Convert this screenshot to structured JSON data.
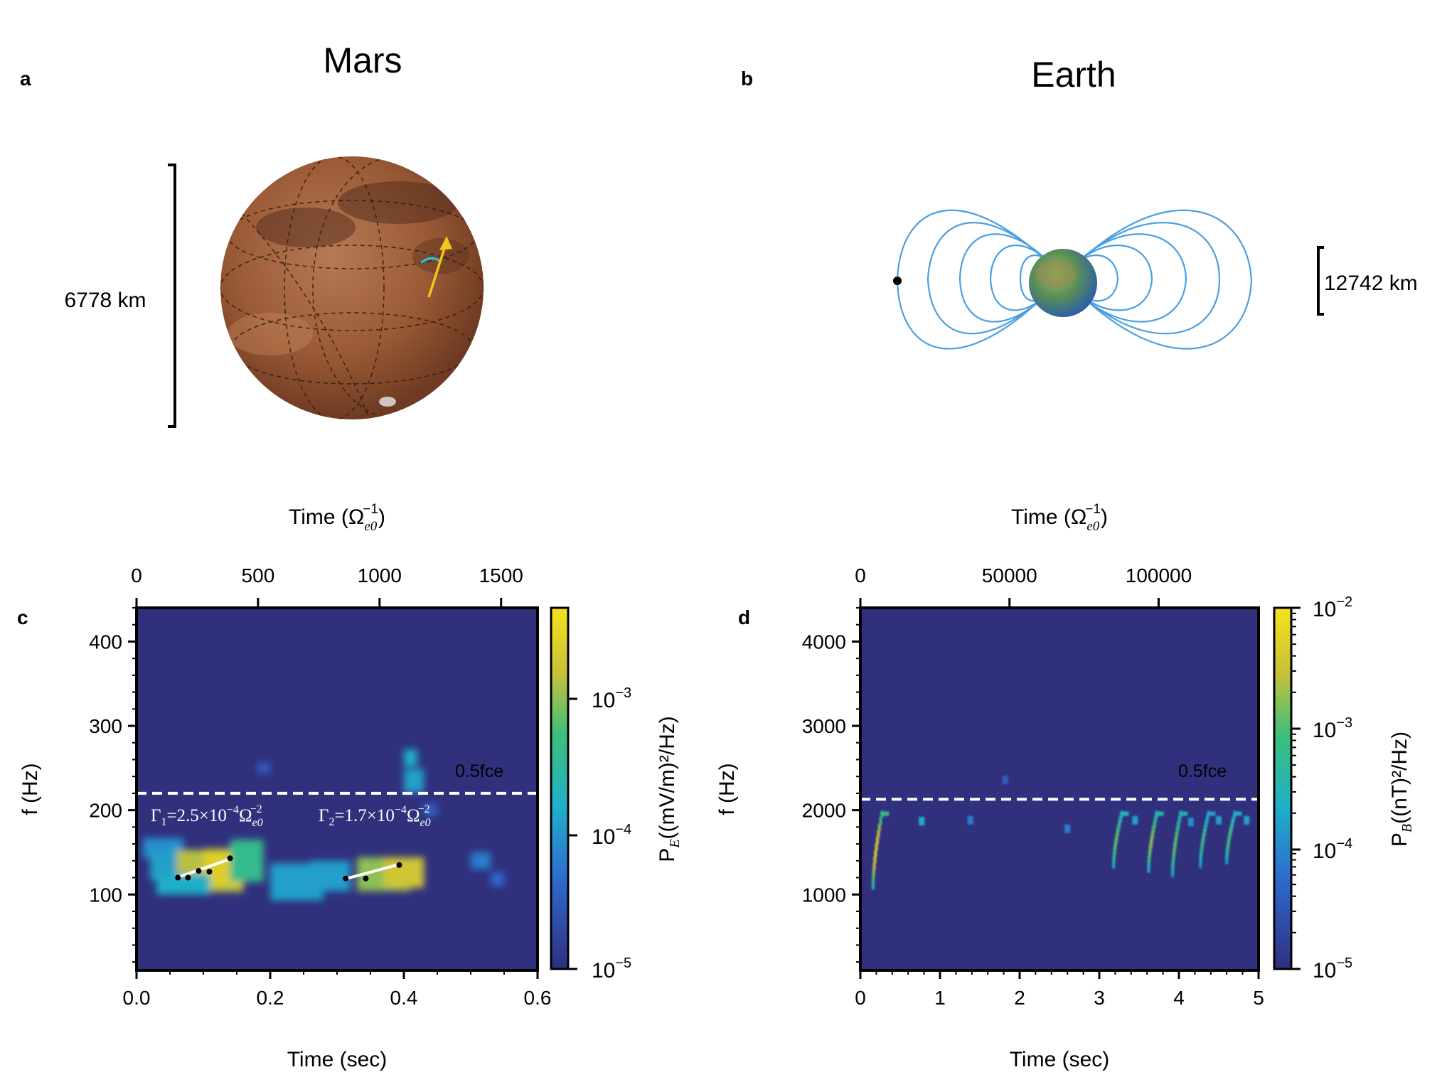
{
  "panels": {
    "a": {
      "letter": "a",
      "title": "Mars",
      "scale_label": "6778 km"
    },
    "b": {
      "letter": "b",
      "title": "Earth",
      "scale_label": "12742 km"
    },
    "c": {
      "letter": "c",
      "top_axis_label": "Time (Ω",
      "top_axis_sub": "e0",
      "top_axis_sup": "−1",
      "top_ticks": [
        "0",
        "500",
        "1000",
        "1500"
      ],
      "top_tick_values": [
        0,
        500,
        1000,
        1500
      ],
      "top_range": [
        0,
        1650
      ],
      "y_label": "f (Hz)",
      "y_ticks": [
        "400",
        "300",
        "200",
        "100"
      ],
      "x_label": "Time (sec)",
      "x_ticks": [
        "0.0",
        "0.2",
        "0.4",
        "0.6"
      ],
      "fce_label": "0.5fce",
      "gamma1": "Γ",
      "gamma1_sub": "1",
      "gamma1_text": "=2.5×10",
      "gamma1_exp": "−4",
      "gamma2": "Γ",
      "gamma2_sub": "2",
      "gamma2_text": "=1.7×10",
      "gamma2_exp": "−4",
      "omega": "Ω",
      "omega_sub": "e0",
      "omega_exp": "−2",
      "colorbar_label": "P",
      "colorbar_label_sub": "E",
      "colorbar_label_rest": "((mV/m)²/Hz)",
      "colorbar_ticks": [
        "10",
        "10",
        "10"
      ],
      "colorbar_exps": [
        "−3",
        "−4",
        "−5"
      ]
    },
    "d": {
      "letter": "d",
      "top_axis_label": "Time (Ω",
      "top_axis_sub": "e0",
      "top_axis_sup": "−1",
      "top_ticks": [
        "0",
        "50000",
        "100000"
      ],
      "y_label": "f (Hz)",
      "y_ticks": [
        "4000",
        "3000",
        "2000",
        "1000"
      ],
      "x_label": "Time (sec)",
      "x_ticks": [
        "0",
        "1",
        "2",
        "3",
        "4",
        "5"
      ],
      "fce_label": "0.5fce",
      "colorbar_label": "P",
      "colorbar_label_sub": "B",
      "colorbar_label_rest": "((nT)²/Hz)",
      "colorbar_ticks": [
        "10",
        "10",
        "10",
        "10"
      ],
      "colorbar_exps": [
        "−2",
        "−3",
        "−4",
        "−5"
      ]
    }
  },
  "colors": {
    "background_plot": "#30307d",
    "field_lines": "#4a9fe0",
    "fce_line": "#ffffff",
    "mars": "#a0603a",
    "trajectory": "#f5c518"
  },
  "chart_data": [
    {
      "type": "heatmap",
      "panel": "c",
      "x_range": [
        0.0,
        0.6
      ],
      "y_range": [
        10,
        440
      ],
      "fce_half_hz": 220,
      "blobs": [
        {
          "t": 0.01,
          "f": 155,
          "dt": 0.06,
          "df": 12,
          "level": 0.35
        },
        {
          "t": 0.02,
          "f": 135,
          "dt": 0.06,
          "df": 18,
          "level": 0.4
        },
        {
          "t": 0.06,
          "f": 128,
          "dt": 0.1,
          "df": 25,
          "level": 0.8
        },
        {
          "t": 0.1,
          "f": 132,
          "dt": 0.06,
          "df": 22,
          "level": 0.9
        },
        {
          "t": 0.14,
          "f": 140,
          "dt": 0.05,
          "df": 25,
          "level": 0.6
        },
        {
          "t": 0.03,
          "f": 112,
          "dt": 0.08,
          "df": 12,
          "level": 0.45
        },
        {
          "t": 0.2,
          "f": 115,
          "dt": 0.08,
          "df": 22,
          "level": 0.4
        },
        {
          "t": 0.26,
          "f": 122,
          "dt": 0.06,
          "df": 18,
          "level": 0.4
        },
        {
          "t": 0.33,
          "f": 124,
          "dt": 0.08,
          "df": 20,
          "level": 0.75
        },
        {
          "t": 0.37,
          "f": 126,
          "dt": 0.06,
          "df": 18,
          "level": 0.85
        },
        {
          "t": 0.4,
          "f": 235,
          "dt": 0.03,
          "df": 14,
          "level": 0.4
        },
        {
          "t": 0.4,
          "f": 262,
          "dt": 0.02,
          "df": 10,
          "level": 0.45
        },
        {
          "t": 0.5,
          "f": 140,
          "dt": 0.03,
          "df": 10,
          "level": 0.3
        },
        {
          "t": 0.53,
          "f": 118,
          "dt": 0.02,
          "df": 8,
          "level": 0.25
        },
        {
          "t": 0.18,
          "f": 250,
          "dt": 0.02,
          "df": 6,
          "level": 0.2
        },
        {
          "t": 0.43,
          "f": 200,
          "dt": 0.02,
          "df": 8,
          "level": 0.2
        }
      ],
      "fit_lines": [
        {
          "t0": 0.06,
          "f0": 120,
          "t1": 0.14,
          "f1": 142
        },
        {
          "t0": 0.31,
          "f0": 118,
          "t1": 0.39,
          "f1": 135
        }
      ],
      "fit_points": [
        {
          "t": 0.062,
          "f": 120
        },
        {
          "t": 0.077,
          "f": 120
        },
        {
          "t": 0.093,
          "f": 128
        },
        {
          "t": 0.109,
          "f": 127
        },
        {
          "t": 0.14,
          "f": 143
        },
        {
          "t": 0.313,
          "f": 119
        },
        {
          "t": 0.343,
          "f": 119
        },
        {
          "t": 0.393,
          "f": 135
        }
      ]
    },
    {
      "type": "heatmap",
      "panel": "d",
      "x_range": [
        0,
        5
      ],
      "y_range": [
        100,
        4400
      ],
      "fce_half_hz": 2130,
      "chorus_elements": [
        {
          "t0": 0.16,
          "t1": 0.27,
          "f0": 1100,
          "f1": 1950,
          "level": 0.9
        },
        {
          "t0": 3.18,
          "t1": 3.28,
          "f0": 1350,
          "f1": 1950,
          "level": 0.7
        },
        {
          "t0": 3.62,
          "t1": 3.72,
          "f0": 1300,
          "f1": 1950,
          "level": 0.75
        },
        {
          "t0": 3.92,
          "t1": 4.02,
          "f0": 1250,
          "f1": 1950,
          "level": 0.7
        },
        {
          "t0": 4.27,
          "t1": 4.37,
          "f0": 1350,
          "f1": 1950,
          "level": 0.6
        },
        {
          "t0": 4.6,
          "t1": 4.7,
          "f0": 1400,
          "f1": 1950,
          "level": 0.65
        }
      ],
      "patches": [
        {
          "t": 0.77,
          "f": 1870,
          "level": 0.45
        },
        {
          "t": 1.38,
          "f": 1880,
          "level": 0.3
        },
        {
          "t": 2.6,
          "f": 1780,
          "level": 0.3
        },
        {
          "t": 3.45,
          "f": 1880,
          "level": 0.4
        },
        {
          "t": 4.15,
          "f": 1860,
          "level": 0.35
        },
        {
          "t": 4.5,
          "f": 1880,
          "level": 0.4
        },
        {
          "t": 4.85,
          "f": 1880,
          "level": 0.4
        },
        {
          "t": 1.82,
          "f": 2360,
          "level": 0.2
        }
      ]
    }
  ]
}
